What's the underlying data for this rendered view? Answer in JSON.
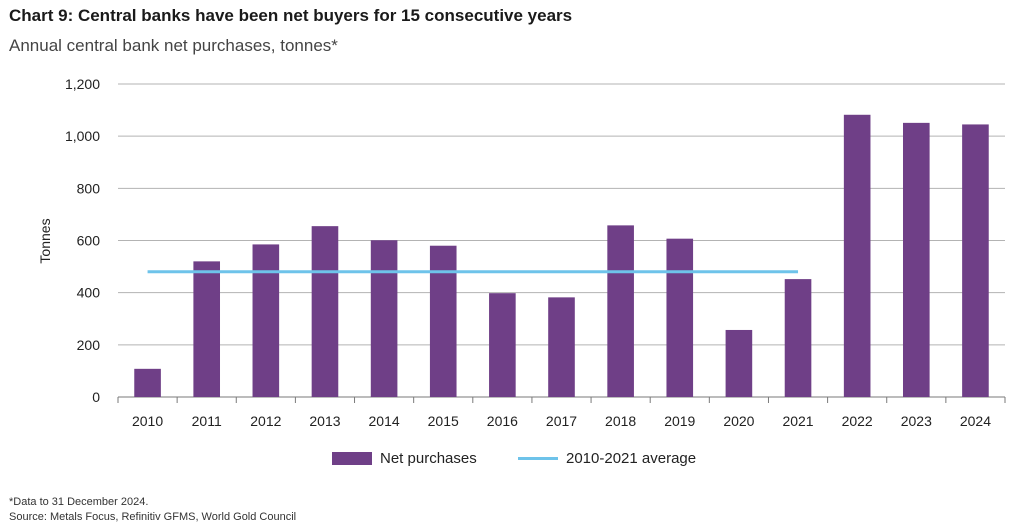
{
  "header": {
    "title": "Chart 9: Central banks have been net buyers for 15 consecutive years",
    "subtitle": "Annual central bank net purchases, tonnes*"
  },
  "chart_data": {
    "type": "bar",
    "categories": [
      "2010",
      "2011",
      "2012",
      "2013",
      "2014",
      "2015",
      "2016",
      "2017",
      "2018",
      "2019",
      "2020",
      "2021",
      "2022",
      "2023",
      "2024"
    ],
    "series": [
      {
        "name": "Net purchases",
        "color": "#6f3f87",
        "values": [
          108,
          520,
          585,
          655,
          601,
          580,
          398,
          382,
          658,
          607,
          257,
          452,
          1082,
          1051,
          1045
        ]
      }
    ],
    "average_line": {
      "name": "2010-2021 average",
      "color": "#6ec3ea",
      "value": 480,
      "from": "2010",
      "to": "2021"
    },
    "ylabel": "Tonnes",
    "ylim": [
      0,
      1200
    ],
    "yticks": [
      0,
      200,
      400,
      600,
      800,
      1000,
      1200
    ],
    "ytick_labels": [
      "0",
      "200",
      "400",
      "600",
      "800",
      "1,000",
      "1,200"
    ],
    "grid": true,
    "legend_position": "bottom"
  },
  "footer": {
    "note": "*Data to 31 December 2024.",
    "source": "Source: Metals Focus, Refinitiv GFMS, World Gold Council"
  }
}
